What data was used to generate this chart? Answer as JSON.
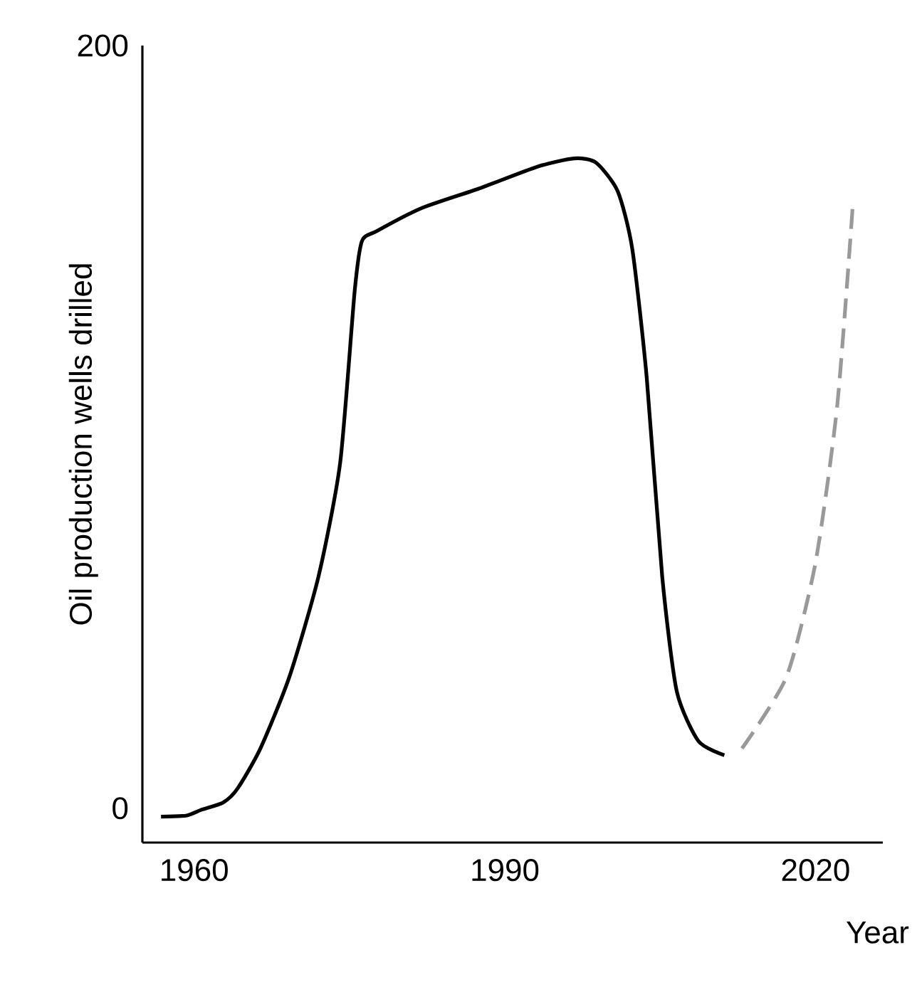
{
  "chart_data": {
    "type": "line",
    "xlabel": "Year",
    "ylabel": "Oil production wells drilled",
    "xlim": [
      1955,
      2026.5
    ],
    "ylim": [
      -9,
      200
    ],
    "xticks": [
      1960,
      1990,
      2020
    ],
    "yticks": [
      0,
      200
    ],
    "grid": false,
    "series": [
      {
        "color": "#000000",
        "line_style": "solid",
        "x": [
          1956.8,
          1959.3,
          1960.7,
          1962.8,
          1964.2,
          1966.4,
          1969.2,
          1972.0,
          1974.1,
          1975.5,
          1976.2,
          1977.6,
          1981.9,
          1987.5,
          1993.1,
          1996.7,
          1998.8,
          2000.9,
          2002.3,
          2003.7,
          2005.2,
          2006.6,
          2008.7,
          2011.2
        ],
        "values": [
          -2.2,
          -1.9,
          -0.4,
          1.5,
          5.2,
          15.7,
          34.5,
          60.7,
          90.6,
          135.6,
          148.7,
          151.3,
          157.3,
          162.5,
          168.2,
          170.4,
          169.3,
          161.8,
          146.8,
          113,
          60.7,
          30.7,
          17.6,
          13.9
        ]
      },
      {
        "color": "#999999",
        "line_style": "dashed",
        "x": [
          2012.9,
          2017.2,
          2020.0,
          2022.1,
          2023.6
        ],
        "values": [
          15.7,
          34.5,
          64.4,
          105.6,
          158.1
        ]
      }
    ]
  }
}
